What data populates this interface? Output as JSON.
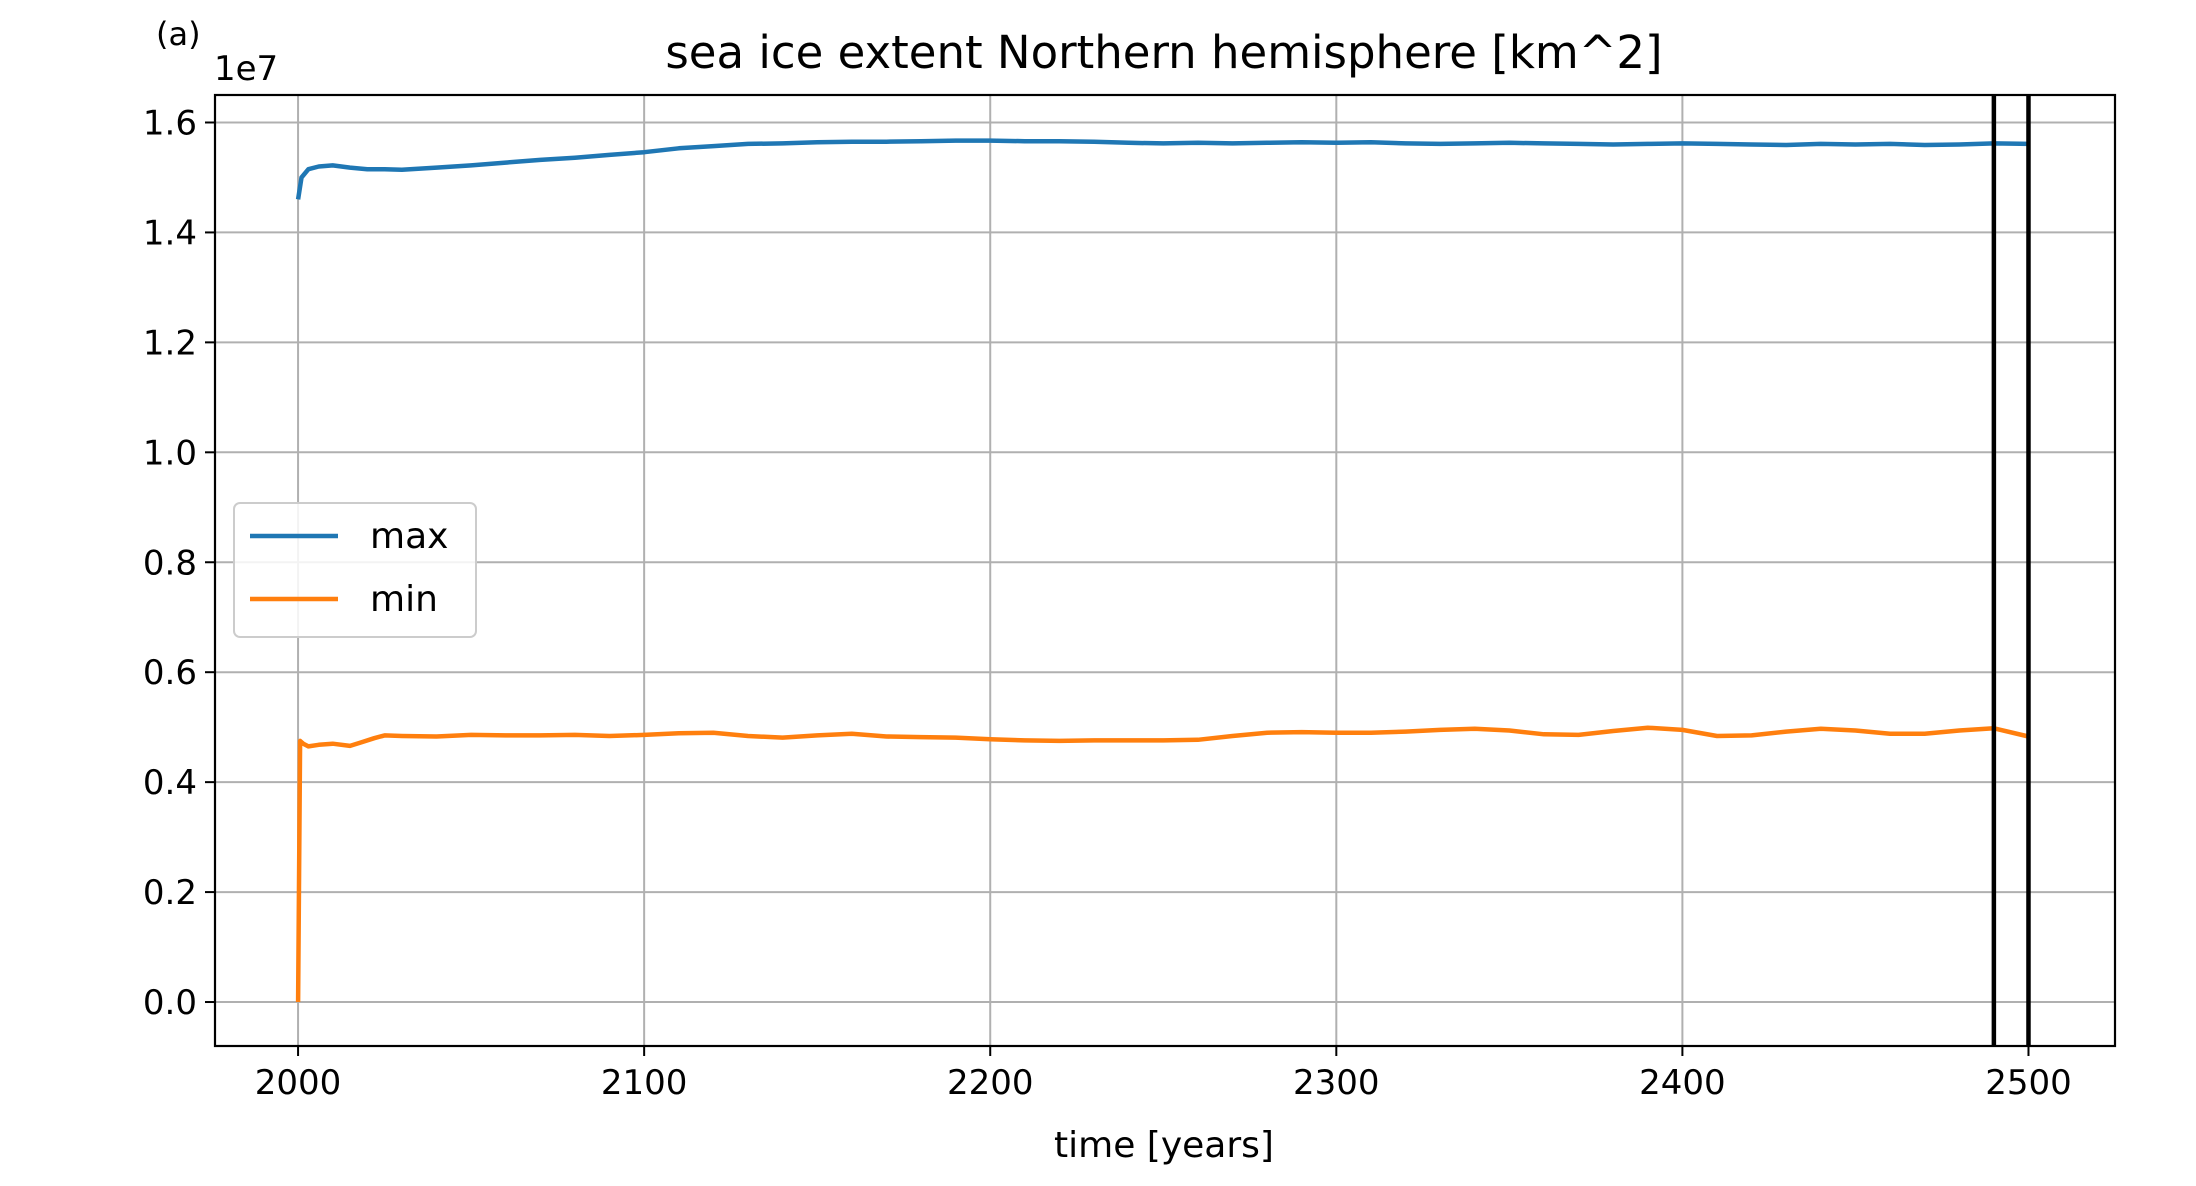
{
  "panel_tag": "(a)",
  "offset_text": "1e7",
  "chart_data": {
    "type": "line",
    "title": "sea ice extent Northern hemisphere [km^2]",
    "xlabel": "time [years]",
    "ylabel": "",
    "y_scale_multiplier": 10000000,
    "xlim": [
      1976,
      2525
    ],
    "ylim": [
      -0.08,
      1.65
    ],
    "xticks": [
      2000,
      2100,
      2200,
      2300,
      2400,
      2500
    ],
    "xtick_labels": [
      "2000",
      "2100",
      "2200",
      "2300",
      "2400",
      "2500"
    ],
    "yticks": [
      0.0,
      0.2,
      0.4,
      0.6,
      0.8,
      1.0,
      1.2,
      1.4,
      1.6
    ],
    "ytick_labels": [
      "0.0",
      "0.2",
      "0.4",
      "0.6",
      "0.8",
      "1.0",
      "1.2",
      "1.4",
      "1.6"
    ],
    "grid": true,
    "legend_position": "center-left",
    "vertical_lines": [
      2490,
      2500
    ],
    "series": [
      {
        "name": "max",
        "color": "#1f77b4",
        "x": [
          2000,
          2001,
          2003,
          2006,
          2010,
          2015,
          2020,
          2025,
          2030,
          2040,
          2050,
          2060,
          2070,
          2080,
          2090,
          2100,
          2110,
          2120,
          2130,
          2140,
          2150,
          2160,
          2170,
          2180,
          2190,
          2200,
          2210,
          2220,
          2230,
          2240,
          2250,
          2260,
          2270,
          2280,
          2290,
          2300,
          2310,
          2320,
          2330,
          2340,
          2350,
          2360,
          2370,
          2380,
          2390,
          2400,
          2410,
          2420,
          2430,
          2440,
          2450,
          2460,
          2470,
          2480,
          2490,
          2500
        ],
        "values": [
          1.46,
          1.5,
          1.515,
          1.52,
          1.522,
          1.518,
          1.515,
          1.515,
          1.514,
          1.518,
          1.522,
          1.527,
          1.532,
          1.536,
          1.541,
          1.546,
          1.553,
          1.557,
          1.561,
          1.562,
          1.564,
          1.565,
          1.565,
          1.566,
          1.567,
          1.567,
          1.566,
          1.566,
          1.565,
          1.563,
          1.562,
          1.563,
          1.562,
          1.563,
          1.564,
          1.563,
          1.564,
          1.562,
          1.561,
          1.562,
          1.563,
          1.562,
          1.561,
          1.56,
          1.561,
          1.562,
          1.561,
          1.56,
          1.559,
          1.561,
          1.56,
          1.561,
          1.559,
          1.56,
          1.562,
          1.561
        ]
      },
      {
        "name": "min",
        "color": "#ff7f0e",
        "x": [
          2000,
          2000.6,
          2001.5,
          2003,
          2006,
          2010,
          2015,
          2018,
          2022,
          2025,
          2030,
          2040,
          2050,
          2060,
          2070,
          2080,
          2090,
          2100,
          2110,
          2120,
          2130,
          2140,
          2150,
          2160,
          2170,
          2180,
          2190,
          2200,
          2210,
          2220,
          2230,
          2240,
          2250,
          2260,
          2270,
          2280,
          2290,
          2300,
          2310,
          2320,
          2330,
          2340,
          2350,
          2360,
          2370,
          2380,
          2390,
          2400,
          2410,
          2420,
          2430,
          2440,
          2450,
          2460,
          2470,
          2480,
          2490,
          2500
        ],
        "values": [
          0.0,
          0.475,
          0.47,
          0.465,
          0.468,
          0.47,
          0.466,
          0.472,
          0.48,
          0.485,
          0.484,
          0.483,
          0.486,
          0.485,
          0.485,
          0.486,
          0.484,
          0.486,
          0.489,
          0.49,
          0.484,
          0.481,
          0.485,
          0.488,
          0.483,
          0.482,
          0.481,
          0.478,
          0.476,
          0.475,
          0.476,
          0.476,
          0.476,
          0.477,
          0.484,
          0.49,
          0.491,
          0.49,
          0.49,
          0.492,
          0.495,
          0.497,
          0.494,
          0.487,
          0.486,
          0.493,
          0.499,
          0.495,
          0.484,
          0.485,
          0.492,
          0.497,
          0.494,
          0.488,
          0.488,
          0.494,
          0.498,
          0.483
        ]
      }
    ]
  }
}
